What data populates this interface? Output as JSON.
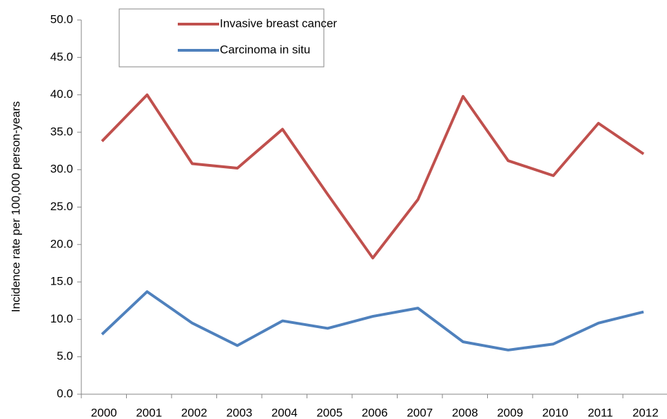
{
  "chart_data": {
    "type": "line",
    "y_label": "Incidence rate per 100,000 person-years",
    "categories": [
      "2000",
      "2001",
      "2002",
      "2003",
      "2004",
      "2005",
      "2006",
      "2007",
      "2008",
      "2009",
      "2010",
      "2011",
      "2012"
    ],
    "series": [
      {
        "name": "Invasive breast cancer",
        "color": "#c0504d",
        "values": [
          33.8,
          40.0,
          30.8,
          30.2,
          35.4,
          26.7,
          18.2,
          26.0,
          39.8,
          31.2,
          29.2,
          36.2,
          32.1
        ]
      },
      {
        "name": "Carcinoma in situ",
        "color": "#4f81bd",
        "values": [
          8.0,
          13.7,
          9.5,
          6.5,
          9.8,
          8.8,
          10.4,
          11.5,
          7.0,
          5.9,
          6.7,
          9.5,
          11.0
        ]
      }
    ],
    "ylim": [
      0,
      50
    ],
    "yticks": [
      {
        "value": 0,
        "label": "0.0"
      },
      {
        "value": 5,
        "label": "5.0"
      },
      {
        "value": 10,
        "label": "10.0"
      },
      {
        "value": 15,
        "label": "15.0"
      },
      {
        "value": 20,
        "label": "20.0"
      },
      {
        "value": 25,
        "label": "25.0"
      },
      {
        "value": 30,
        "label": "30.0"
      },
      {
        "value": 35,
        "label": "35.0"
      },
      {
        "value": 40,
        "label": "40.0"
      },
      {
        "value": 45,
        "label": "45.0"
      },
      {
        "value": 50,
        "label": "50.0"
      }
    ],
    "grid": false,
    "legend": "top"
  }
}
